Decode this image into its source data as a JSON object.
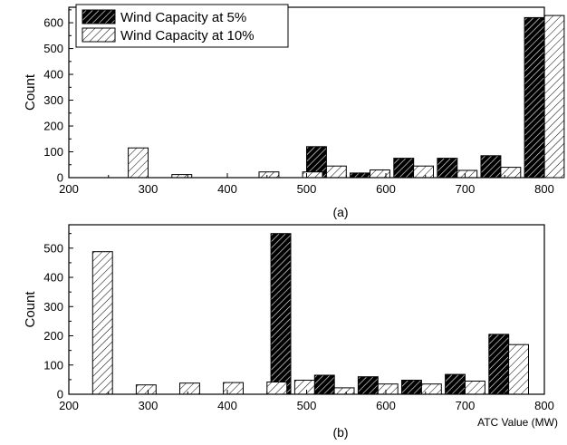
{
  "legend": {
    "items": [
      {
        "label": "Wind Capacity at 5%",
        "pattern": "dense-dark-hatch"
      },
      {
        "label": "Wind Capacity at 10%",
        "pattern": "sparse-light-hatch"
      }
    ],
    "placement": "top-left"
  },
  "chart_data": [
    {
      "type": "bar",
      "panel_label": "(a)",
      "ylabel": "Count",
      "xlabel": "",
      "xlim": [
        200,
        800
      ],
      "ylim": [
        0,
        660
      ],
      "xticks": [
        200,
        300,
        400,
        500,
        600,
        700,
        800
      ],
      "yticks": [
        0,
        100,
        200,
        300,
        400,
        500,
        600
      ],
      "grid": false,
      "bar_width": 25,
      "series": [
        {
          "name": "Wind Capacity at 5%",
          "x": [
            512.5,
            567.5,
            622.5,
            677.5,
            732.5,
            787.5
          ],
          "values": [
            120,
            18,
            75,
            75,
            85,
            620
          ]
        },
        {
          "name": "Wind Capacity at 10%",
          "x": [
            287.5,
            342.5,
            452.5,
            507.5,
            537.5,
            592.5,
            647.5,
            702.5,
            757.5,
            812.5
          ],
          "values": [
            115,
            12,
            22,
            22,
            45,
            30,
            45,
            28,
            40,
            628
          ]
        }
      ]
    },
    {
      "type": "bar",
      "panel_label": "(b)",
      "ylabel": "Count",
      "xlabel": "ATC Value (MW)",
      "xlim": [
        200,
        800
      ],
      "ylim": [
        0,
        580
      ],
      "xticks": [
        200,
        300,
        400,
        500,
        600,
        700,
        800
      ],
      "yticks": [
        0,
        100,
        200,
        300,
        400,
        500
      ],
      "grid": false,
      "bar_width": 25,
      "series": [
        {
          "name": "Wind Capacity at 5%",
          "x": [
            467.5,
            522.5,
            577.5,
            632.5,
            687.5,
            742.5
          ],
          "values": [
            550,
            65,
            60,
            48,
            68,
            205
          ]
        },
        {
          "name": "Wind Capacity at 10%",
          "x": [
            242.5,
            297.5,
            352.5,
            407.5,
            462.5,
            497.5,
            547.5,
            602.5,
            657.5,
            712.5,
            767.5
          ],
          "values": [
            488,
            32,
            38,
            40,
            42,
            48,
            22,
            35,
            35,
            45,
            170
          ]
        }
      ]
    }
  ]
}
